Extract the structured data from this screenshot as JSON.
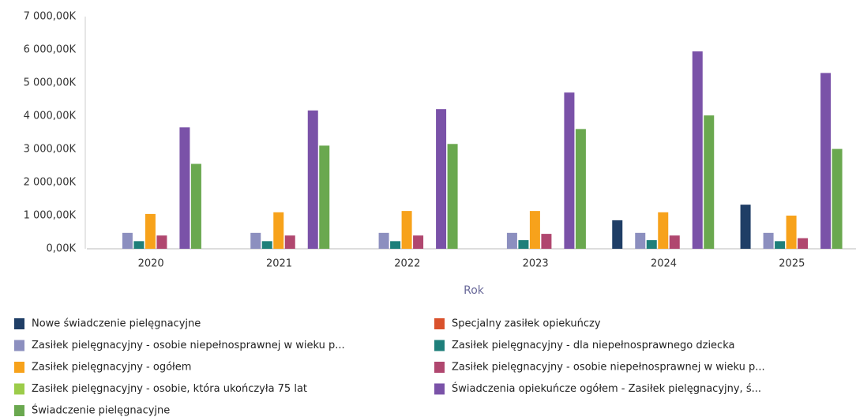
{
  "chart_data": {
    "type": "bar",
    "x_label": "Rok",
    "categories": [
      "2020",
      "2021",
      "2022",
      "2023",
      "2024",
      "2025"
    ],
    "ylim": [
      0,
      7000
    ],
    "yticks": [
      {
        "value": 0,
        "label": "0,00K"
      },
      {
        "value": 1000,
        "label": "1 000,00K"
      },
      {
        "value": 2000,
        "label": "2 000,00K"
      },
      {
        "value": 3000,
        "label": "3 000,00K"
      },
      {
        "value": 4000,
        "label": "4 000,00K"
      },
      {
        "value": 5000,
        "label": "5 000,00K"
      },
      {
        "value": 6000,
        "label": "6 000,00K"
      },
      {
        "value": 7000,
        "label": "7 000,00K"
      }
    ],
    "grid": false,
    "series": [
      {
        "name": "Nowe świadczenie pielęgnacyjne",
        "color": "#1f3e66",
        "values": [
          0,
          0,
          0,
          0,
          860,
          1330
        ]
      },
      {
        "name": "Specjalny zasiłek opiekuńczy",
        "color": "#d9512c",
        "values": [
          0,
          0,
          0,
          0,
          0,
          0
        ]
      },
      {
        "name": "Zasiłek pielęgnacyjny -  osobie niepełnosprawnej w wieku p...",
        "color": "#8c8fbf",
        "values": [
          480,
          480,
          480,
          480,
          480,
          480
        ]
      },
      {
        "name": "Zasiłek pielęgnacyjny - dla niepełnosprawnego dziecka",
        "color": "#1e7f7a",
        "values": [
          230,
          230,
          230,
          260,
          260,
          230
        ]
      },
      {
        "name": "Zasiłek pielęgnacyjny - ogółem",
        "color": "#f7a21b",
        "values": [
          1050,
          1100,
          1140,
          1140,
          1100,
          1000
        ]
      },
      {
        "name": "Zasiłek pielęgnacyjny - osobie niepełnosprawnej w wieku p...",
        "color": "#b0476f",
        "values": [
          400,
          400,
          400,
          450,
          400,
          320
        ]
      },
      {
        "name": "Zasiłek pielęgnacyjny - osobie, która ukończyła 75 lat",
        "color": "#9ccc4a",
        "values": [
          0,
          0,
          0,
          0,
          0,
          0
        ]
      },
      {
        "name": "Świadczenia opiekuńcze ogółem - Zasiłek pielęgnacyjny, ś...",
        "color": "#7a52a8",
        "values": [
          3660,
          4170,
          4210,
          4710,
          5950,
          5300
        ]
      },
      {
        "name": "Świadczenie pielęgnacyjne",
        "color": "#6aa84f",
        "values": [
          2560,
          3110,
          3160,
          3610,
          4020,
          3010
        ]
      }
    ]
  }
}
